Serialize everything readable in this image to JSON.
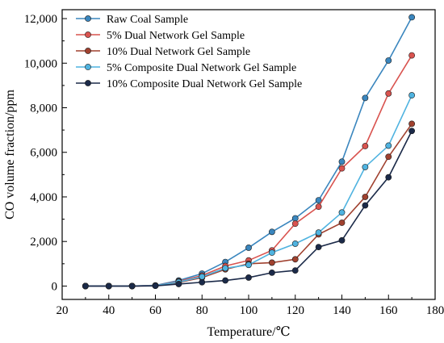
{
  "chart_data": {
    "type": "line",
    "title": "",
    "xlabel": "Temperature/℃",
    "ylabel": "CO volume fraction/ppm",
    "xlim": [
      20,
      180
    ],
    "ylim": [
      -600,
      12400
    ],
    "xticks": [
      20,
      40,
      60,
      80,
      100,
      120,
      140,
      160,
      180
    ],
    "xtick_labels": [
      "20",
      "40",
      "60",
      "80",
      "100",
      "120",
      "140",
      "160",
      "180"
    ],
    "yticks": [
      0,
      2000,
      4000,
      6000,
      8000,
      10000,
      12000
    ],
    "ytick_labels": [
      "0",
      "2,000",
      "4,000",
      "6,000",
      "8,000",
      "10,000",
      "12,000"
    ],
    "grid": false,
    "legend_position": "top-left",
    "x": [
      30,
      40,
      50,
      60,
      70,
      80,
      90,
      100,
      110,
      120,
      130,
      140,
      150,
      160,
      170
    ],
    "series": [
      {
        "name": "Raw Coal Sample",
        "color": "#3A86BE",
        "values": [
          0,
          0,
          0,
          30,
          250,
          560,
          1080,
          1720,
          2430,
          3040,
          3850,
          5580,
          8440,
          10120,
          12060
        ]
      },
      {
        "name": "5% Dual Network Gel Sample",
        "color": "#D9534F",
        "values": [
          0,
          0,
          0,
          20,
          210,
          470,
          900,
          1150,
          1600,
          2800,
          3560,
          5280,
          6280,
          8640,
          10350
        ]
      },
      {
        "name": "10% Dual Network Gel Sample",
        "color": "#A0412F",
        "values": [
          0,
          0,
          0,
          15,
          160,
          380,
          750,
          1000,
          1050,
          1200,
          2320,
          2840,
          4000,
          5800,
          7280
        ]
      },
      {
        "name": "5% Composite Dual Network Gel Sample",
        "color": "#4FB3E0",
        "values": [
          0,
          0,
          0,
          20,
          180,
          420,
          800,
          950,
          1500,
          1900,
          2400,
          3300,
          5340,
          6300,
          8560
        ]
      },
      {
        "name": "10% Composite Dual Network Gel Sample",
        "color": "#1B2A49",
        "values": [
          0,
          0,
          0,
          10,
          90,
          170,
          250,
          380,
          600,
          700,
          1750,
          2050,
          3620,
          4880,
          6960
        ]
      }
    ]
  }
}
